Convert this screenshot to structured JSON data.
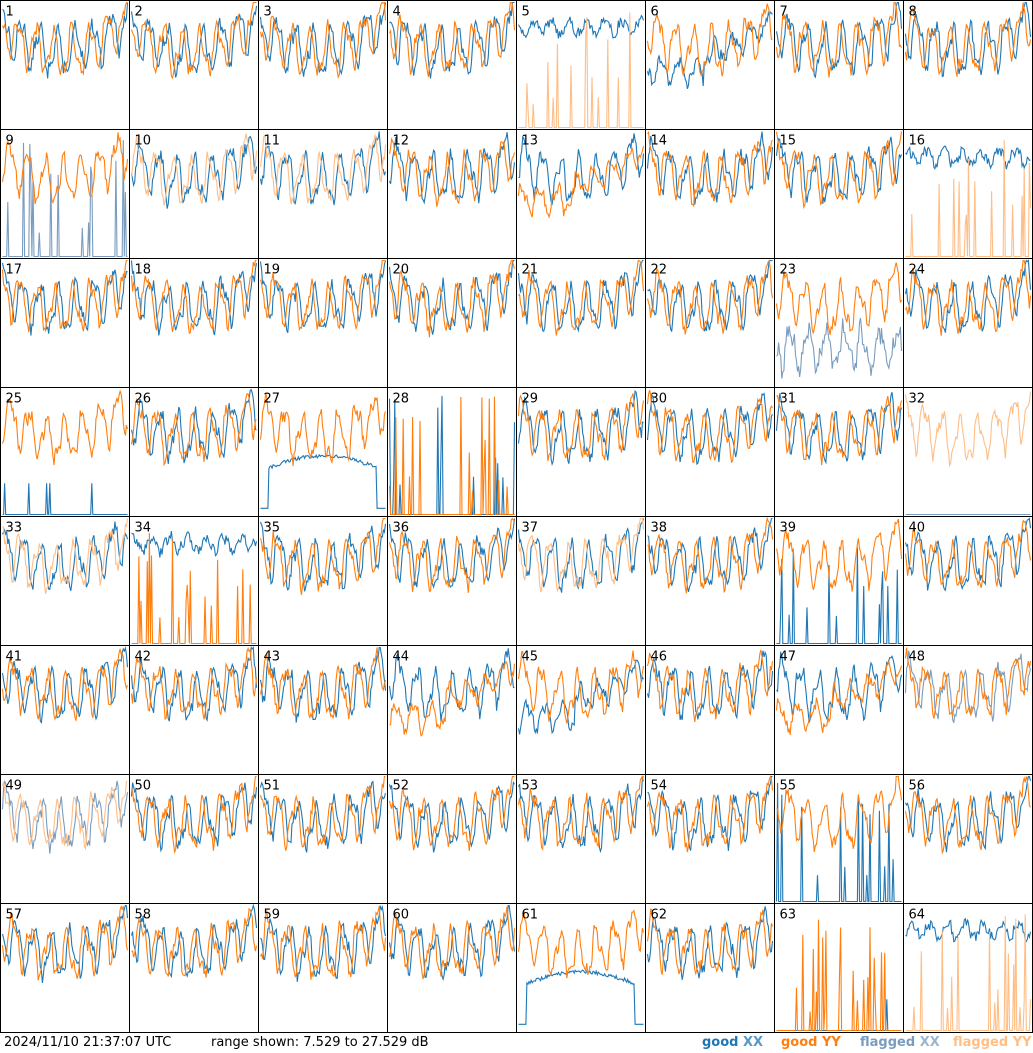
{
  "chart_data": {
    "type": "line",
    "title": "",
    "xlabel": "",
    "ylabel": "",
    "units": "dB",
    "ylim": [
      7.529,
      27.529
    ],
    "timestamp": "2024/11/10 21:37:07 UTC",
    "range_text": "range shown: 7.529 to 27.529 dB",
    "grid_columns": 8,
    "grid_rows": 8,
    "colors": {
      "good_xx": "#1f77b4",
      "good_yy": "#ff7f0e",
      "flagged_xx": "#7a9cbf",
      "flagged_yy": "#ffbe86"
    },
    "legend": [
      {
        "id": "good_xx",
        "word": "good",
        "pol": "XX"
      },
      {
        "id": "good_yy",
        "word": "good",
        "pol": "YY"
      },
      {
        "id": "flagged_xx",
        "word": "flagged",
        "pol": "XX"
      },
      {
        "id": "flagged_yy",
        "word": "flagged",
        "pol": "YY"
      }
    ],
    "panels": [
      {
        "label": "1",
        "xx": "good",
        "yy": "good",
        "xx_shape": "normal",
        "yy_shape": "normal"
      },
      {
        "label": "2",
        "xx": "good",
        "yy": "good",
        "xx_shape": "normal",
        "yy_shape": "normal"
      },
      {
        "label": "3",
        "xx": "good",
        "yy": "good",
        "xx_shape": "normal",
        "yy_shape": "normal"
      },
      {
        "label": "4",
        "xx": "good",
        "yy": "good",
        "xx_shape": "normal",
        "yy_shape": "normal"
      },
      {
        "label": "5",
        "xx": "good",
        "yy": "flagged",
        "xx_shape": "high",
        "yy_shape": "spiky"
      },
      {
        "label": "6",
        "xx": "good",
        "yy": "good",
        "xx_shape": "dip",
        "yy_shape": "normal"
      },
      {
        "label": "7",
        "xx": "good",
        "yy": "good",
        "xx_shape": "normal",
        "yy_shape": "normal"
      },
      {
        "label": "8",
        "xx": "good",
        "yy": "good",
        "xx_shape": "normal",
        "yy_shape": "normal"
      },
      {
        "label": "9",
        "xx": "flagged",
        "yy": "good",
        "xx_shape": "spiky",
        "yy_shape": "normal"
      },
      {
        "label": "10",
        "xx": "good",
        "yy": "flagged",
        "xx_shape": "normal",
        "yy_shape": "normal"
      },
      {
        "label": "11",
        "xx": "good",
        "yy": "flagged",
        "xx_shape": "normal",
        "yy_shape": "normal"
      },
      {
        "label": "12",
        "xx": "good",
        "yy": "good",
        "xx_shape": "normal",
        "yy_shape": "normal"
      },
      {
        "label": "13",
        "xx": "good",
        "yy": "good",
        "xx_shape": "normal",
        "yy_shape": "dip"
      },
      {
        "label": "14",
        "xx": "good",
        "yy": "good",
        "xx_shape": "normal",
        "yy_shape": "normal"
      },
      {
        "label": "15",
        "xx": "good",
        "yy": "good",
        "xx_shape": "normal",
        "yy_shape": "normal"
      },
      {
        "label": "16",
        "xx": "good",
        "yy": "flagged",
        "xx_shape": "high",
        "yy_shape": "spiky"
      },
      {
        "label": "17",
        "xx": "good",
        "yy": "good",
        "xx_shape": "normal",
        "yy_shape": "normal"
      },
      {
        "label": "18",
        "xx": "good",
        "yy": "good",
        "xx_shape": "normal",
        "yy_shape": "normal"
      },
      {
        "label": "19",
        "xx": "good",
        "yy": "good",
        "xx_shape": "normal",
        "yy_shape": "normal"
      },
      {
        "label": "20",
        "xx": "good",
        "yy": "good",
        "xx_shape": "normal",
        "yy_shape": "normal"
      },
      {
        "label": "21",
        "xx": "good",
        "yy": "good",
        "xx_shape": "normal",
        "yy_shape": "normal"
      },
      {
        "label": "22",
        "xx": "good",
        "yy": "good",
        "xx_shape": "normal",
        "yy_shape": "normal"
      },
      {
        "label": "23",
        "xx": "flagged",
        "yy": "good",
        "xx_shape": "low",
        "yy_shape": "normal"
      },
      {
        "label": "24",
        "xx": "good",
        "yy": "good",
        "xx_shape": "normal",
        "yy_shape": "normal"
      },
      {
        "label": "25",
        "xx": "good",
        "yy": "good",
        "xx_shape": "zero",
        "yy_shape": "normal"
      },
      {
        "label": "26",
        "xx": "good",
        "yy": "good",
        "xx_shape": "normal",
        "yy_shape": "normal"
      },
      {
        "label": "27",
        "xx": "good",
        "yy": "good",
        "xx_shape": "hump",
        "yy_shape": "normal"
      },
      {
        "label": "28",
        "xx": "good",
        "yy": "good",
        "xx_shape": "spiky",
        "yy_shape": "spiky"
      },
      {
        "label": "29",
        "xx": "good",
        "yy": "good",
        "xx_shape": "normal",
        "yy_shape": "normal"
      },
      {
        "label": "30",
        "xx": "good",
        "yy": "good",
        "xx_shape": "normal",
        "yy_shape": "normal"
      },
      {
        "label": "31",
        "xx": "good",
        "yy": "good",
        "xx_shape": "normal",
        "yy_shape": "normal"
      },
      {
        "label": "32",
        "xx": "flagged",
        "yy": "flagged",
        "xx_shape": "zero",
        "yy_shape": "normal"
      },
      {
        "label": "33",
        "xx": "good",
        "yy": "flagged",
        "xx_shape": "normal",
        "yy_shape": "normal"
      },
      {
        "label": "34",
        "xx": "good",
        "yy": "good",
        "xx_shape": "high",
        "yy_shape": "spiky"
      },
      {
        "label": "35",
        "xx": "good",
        "yy": "good",
        "xx_shape": "normal",
        "yy_shape": "normal"
      },
      {
        "label": "36",
        "xx": "good",
        "yy": "good",
        "xx_shape": "normal",
        "yy_shape": "normal"
      },
      {
        "label": "37",
        "xx": "good",
        "yy": "flagged",
        "xx_shape": "normal",
        "yy_shape": "normal"
      },
      {
        "label": "38",
        "xx": "good",
        "yy": "good",
        "xx_shape": "normal",
        "yy_shape": "normal"
      },
      {
        "label": "39",
        "xx": "good",
        "yy": "good",
        "xx_shape": "spiky",
        "yy_shape": "normal"
      },
      {
        "label": "40",
        "xx": "good",
        "yy": "good",
        "xx_shape": "normal",
        "yy_shape": "normal"
      },
      {
        "label": "41",
        "xx": "good",
        "yy": "good",
        "xx_shape": "normal",
        "yy_shape": "normal"
      },
      {
        "label": "42",
        "xx": "good",
        "yy": "good",
        "xx_shape": "normal",
        "yy_shape": "normal"
      },
      {
        "label": "43",
        "xx": "good",
        "yy": "good",
        "xx_shape": "normal",
        "yy_shape": "normal"
      },
      {
        "label": "44",
        "xx": "good",
        "yy": "good",
        "xx_shape": "normal",
        "yy_shape": "dip"
      },
      {
        "label": "45",
        "xx": "good",
        "yy": "good",
        "xx_shape": "dip",
        "yy_shape": "normal"
      },
      {
        "label": "46",
        "xx": "good",
        "yy": "good",
        "xx_shape": "normal",
        "yy_shape": "normal"
      },
      {
        "label": "47",
        "xx": "good",
        "yy": "good",
        "xx_shape": "normal",
        "yy_shape": "dip"
      },
      {
        "label": "48",
        "xx": "flagged",
        "yy": "good",
        "xx_shape": "normal",
        "yy_shape": "normal"
      },
      {
        "label": "49",
        "xx": "flagged",
        "yy": "flagged",
        "xx_shape": "normal",
        "yy_shape": "normal"
      },
      {
        "label": "50",
        "xx": "good",
        "yy": "good",
        "xx_shape": "normal",
        "yy_shape": "normal"
      },
      {
        "label": "51",
        "xx": "good",
        "yy": "good",
        "xx_shape": "normal",
        "yy_shape": "normal"
      },
      {
        "label": "52",
        "xx": "good",
        "yy": "good",
        "xx_shape": "normal",
        "yy_shape": "normal"
      },
      {
        "label": "53",
        "xx": "good",
        "yy": "good",
        "xx_shape": "normal",
        "yy_shape": "normal"
      },
      {
        "label": "54",
        "xx": "good",
        "yy": "good",
        "xx_shape": "normal",
        "yy_shape": "normal"
      },
      {
        "label": "55",
        "xx": "good",
        "yy": "good",
        "xx_shape": "spiky",
        "yy_shape": "normal"
      },
      {
        "label": "56",
        "xx": "good",
        "yy": "good",
        "xx_shape": "normal",
        "yy_shape": "normal"
      },
      {
        "label": "57",
        "xx": "good",
        "yy": "good",
        "xx_shape": "normal",
        "yy_shape": "normal"
      },
      {
        "label": "58",
        "xx": "good",
        "yy": "good",
        "xx_shape": "normal",
        "yy_shape": "normal"
      },
      {
        "label": "59",
        "xx": "good",
        "yy": "good",
        "xx_shape": "normal",
        "yy_shape": "normal"
      },
      {
        "label": "60",
        "xx": "good",
        "yy": "good",
        "xx_shape": "normal",
        "yy_shape": "normal"
      },
      {
        "label": "61",
        "xx": "good",
        "yy": "good",
        "xx_shape": "hump",
        "yy_shape": "normal"
      },
      {
        "label": "62",
        "xx": "good",
        "yy": "good",
        "xx_shape": "normal",
        "yy_shape": "normal"
      },
      {
        "label": "63",
        "xx": "good",
        "yy": "good",
        "xx_shape": "zero",
        "yy_shape": "spiky"
      },
      {
        "label": "64",
        "xx": "good",
        "yy": "flagged",
        "xx_shape": "high",
        "yy_shape": "spiky"
      }
    ]
  }
}
